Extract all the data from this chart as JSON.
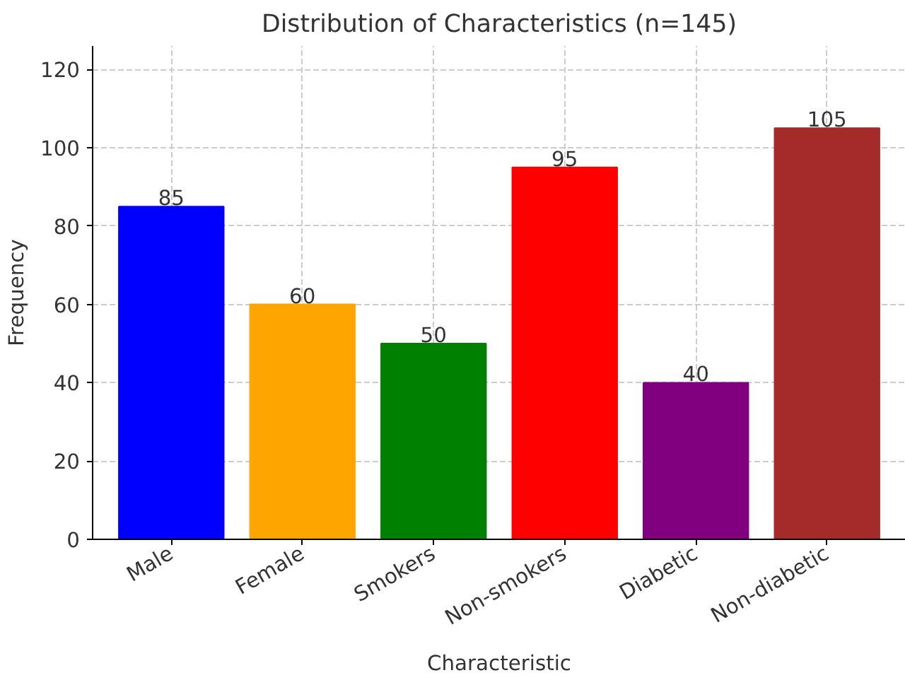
{
  "chart_data": {
    "type": "bar",
    "title": "Distribution of Characteristics (n=145)",
    "xlabel": "Characteristic",
    "ylabel": "Frequency",
    "categories": [
      "Male",
      "Female",
      "Smokers",
      "Non-smokers",
      "Diabetic",
      "Non-diabetic"
    ],
    "values": [
      85,
      60,
      50,
      95,
      40,
      105
    ],
    "colors": [
      "#0000ff",
      "#ffa500",
      "#008000",
      "#ff0000",
      "#800080",
      "#a52a2a"
    ],
    "ylim": [
      0,
      126
    ],
    "yticks": [
      0,
      20,
      40,
      60,
      80,
      100,
      120
    ],
    "grid": true,
    "data_labels": true
  }
}
